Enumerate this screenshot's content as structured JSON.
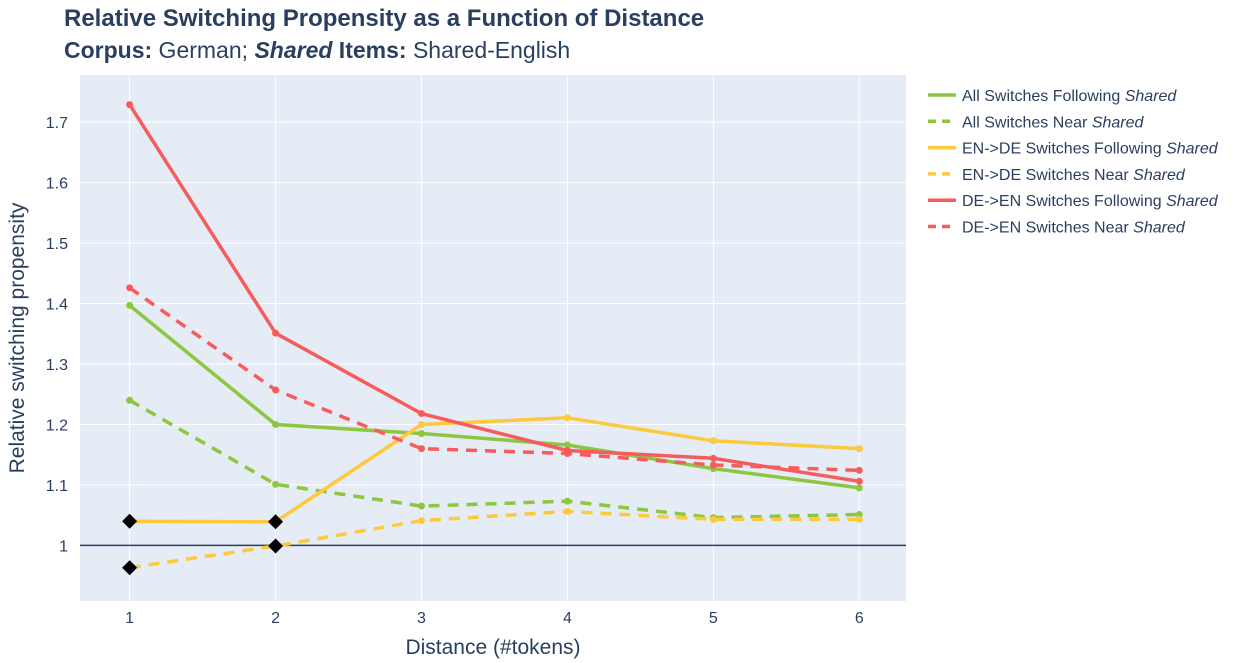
{
  "chart_data": {
    "type": "line",
    "title": "Relative Switching Propensity as a Function of Distance",
    "subtitle": {
      "corpus_label": "Corpus:",
      "corpus_value": " German; ",
      "shared_em": "Shared",
      "items_label": " Items:",
      "items_value": " Shared-English"
    },
    "xlabel": "Distance (#tokens)",
    "ylabel": "Relative switching propensity",
    "x": [
      1,
      2,
      3,
      4,
      5,
      6
    ],
    "x_ticks": [
      "1",
      "2",
      "3",
      "4",
      "5",
      "6"
    ],
    "xlim": [
      0.66,
      6.32
    ],
    "ylim": [
      0.908,
      1.778
    ],
    "y_ticks": [
      {
        "value": 1.0,
        "label": "1"
      },
      {
        "value": 1.1,
        "label": "1.1"
      },
      {
        "value": 1.2,
        "label": "1.2"
      },
      {
        "value": 1.3,
        "label": "1.3"
      },
      {
        "value": 1.4,
        "label": "1.4"
      },
      {
        "value": 1.5,
        "label": "1.5"
      },
      {
        "value": 1.6,
        "label": "1.6"
      },
      {
        "value": 1.7,
        "label": "1.7"
      }
    ],
    "reference_line": 1.0,
    "grid": true,
    "legend_position": "right",
    "series": [
      {
        "name_prefix": "All Switches Following ",
        "name_em": "Shared",
        "color": "#8dc63f",
        "dash": "solid",
        "values": [
          1.397,
          1.2,
          1.185,
          1.166,
          1.127,
          1.095
        ]
      },
      {
        "name_prefix": "All Switches Near ",
        "name_em": "Shared",
        "color": "#8dc63f",
        "dash": "dash",
        "values": [
          1.24,
          1.101,
          1.065,
          1.073,
          1.046,
          1.051
        ]
      },
      {
        "name_prefix": "EN->DE Switches Following ",
        "name_em": "Shared",
        "color": "#fdc93d",
        "dash": "solid",
        "values": [
          1.04,
          1.039,
          1.2,
          1.211,
          1.173,
          1.16
        ]
      },
      {
        "name_prefix": "EN->DE Switches Near ",
        "name_em": "Shared",
        "color": "#fdc93d",
        "dash": "dash",
        "values": [
          0.963,
          0.999,
          1.041,
          1.056,
          1.043,
          1.043
        ]
      },
      {
        "name_prefix": "DE->EN Switches Following ",
        "name_em": "Shared",
        "color": "#f75c5c",
        "dash": "solid",
        "values": [
          1.729,
          1.351,
          1.218,
          1.157,
          1.144,
          1.106
        ]
      },
      {
        "name_prefix": "DE->EN Switches Near ",
        "name_em": "Shared",
        "color": "#f75c5c",
        "dash": "dash",
        "values": [
          1.426,
          1.257,
          1.16,
          1.152,
          1.133,
          1.124
        ]
      }
    ],
    "markers": {
      "shape": "diamond",
      "color": "#000000",
      "points": [
        {
          "x": 1,
          "y": 1.04
        },
        {
          "x": 1,
          "y": 0.963
        },
        {
          "x": 2,
          "y": 1.039
        },
        {
          "x": 2,
          "y": 0.999
        }
      ]
    }
  }
}
